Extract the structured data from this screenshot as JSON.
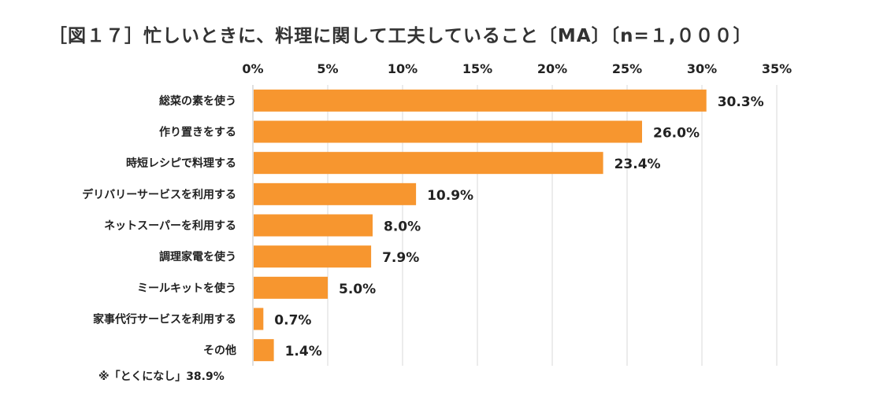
{
  "title": "［図１７］忙しいときに、料理に関して工夫していること〔MA〕〔n=１,０００〕",
  "footnote": "※「とくになし」38.9%",
  "chart_data": {
    "type": "bar",
    "orientation": "horizontal",
    "title": "［図１７］忙しいときに、料理に関して工夫していること〔MA〕〔n=１,０００〕",
    "xlabel": "",
    "ylabel": "",
    "xlim": [
      0,
      35
    ],
    "x_tick_position": "top",
    "grid": true,
    "ticks": [
      "0%",
      "5%",
      "10%",
      "15%",
      "20%",
      "25%",
      "30%",
      "35%"
    ],
    "categories": [
      "総菜の素を使う",
      "作り置きをする",
      "時短レシピで料理する",
      "デリバリーサービスを利用する",
      "ネットスーパーを利用する",
      "調理家電を使う",
      "ミールキットを使う",
      "家事代行サービスを利用する",
      "その他"
    ],
    "values": [
      30.3,
      26.0,
      23.4,
      10.9,
      8.0,
      7.9,
      5.0,
      0.7,
      1.4
    ],
    "value_labels": [
      "30.3%",
      "26.0%",
      "23.4%",
      "10.9%",
      "8.0%",
      "7.9%",
      "5.0%",
      "0.7%",
      "1.4%"
    ],
    "bar_color": "#F7962F",
    "grid_color": "#D9D9D9"
  }
}
